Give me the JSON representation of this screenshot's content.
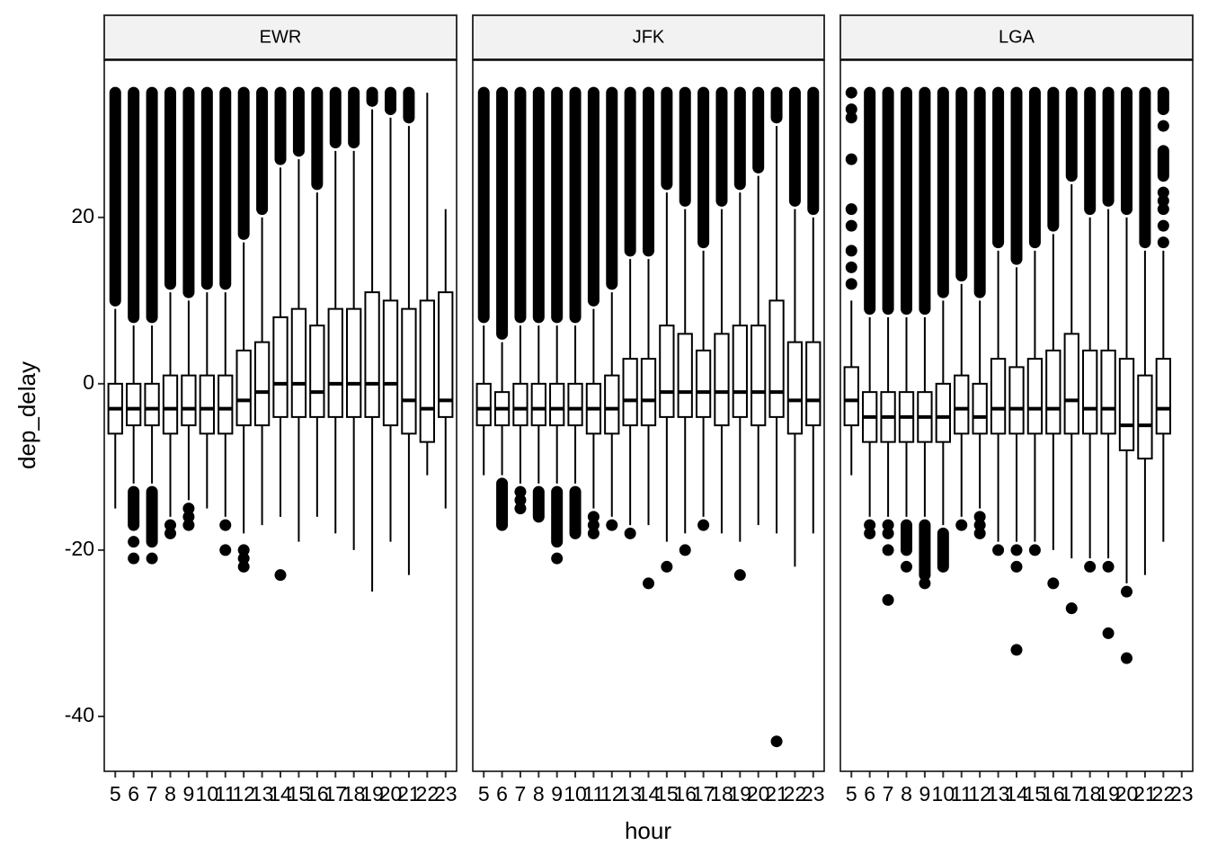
{
  "xlabel": "hour",
  "ylabel": "dep_delay",
  "chart_data": [
    {
      "type": "box",
      "title": "EWR",
      "ylim": [
        -46.6,
        38.9
      ],
      "yticks": [
        -40,
        -20,
        0,
        20
      ],
      "categories": [
        5,
        6,
        7,
        8,
        9,
        10,
        11,
        12,
        13,
        14,
        15,
        16,
        17,
        18,
        19,
        20,
        21,
        22,
        23
      ],
      "boxes": [
        {
          "low": -15,
          "q1": -6,
          "median": -3,
          "q3": 0,
          "high": 9,
          "bands": [
            [
              10,
              35
            ]
          ]
        },
        {
          "low": -12,
          "q1": -5,
          "median": -3,
          "q3": 0,
          "high": 7,
          "bands": [
            [
              8,
              35
            ],
            [
              -17,
              -13
            ]
          ],
          "outliers": [
            -19,
            -21
          ]
        },
        {
          "low": -12,
          "q1": -5,
          "median": -3,
          "q3": 0,
          "high": 7,
          "bands": [
            [
              8,
              35
            ],
            [
              -19,
              -13
            ]
          ],
          "outliers": [
            -21
          ]
        },
        {
          "low": -16,
          "q1": -6,
          "median": -3,
          "q3": 1,
          "high": 11,
          "bands": [
            [
              12,
              35
            ]
          ],
          "outliers": [
            -17,
            -18
          ]
        },
        {
          "low": -14,
          "q1": -5,
          "median": -3,
          "q3": 1,
          "high": 10,
          "bands": [
            [
              11,
              35
            ]
          ],
          "outliers": [
            -15,
            -16,
            -17
          ]
        },
        {
          "low": -15,
          "q1": -6,
          "median": -3,
          "q3": 1,
          "high": 11,
          "bands": [
            [
              12,
              35
            ]
          ]
        },
        {
          "low": -16,
          "q1": -6,
          "median": -3,
          "q3": 1,
          "high": 11,
          "bands": [
            [
              12,
              35
            ]
          ],
          "outliers": [
            -17,
            -20
          ]
        },
        {
          "low": -18,
          "q1": -5,
          "median": -2,
          "q3": 4,
          "high": 17,
          "bands": [
            [
              18,
              35
            ]
          ],
          "outliers": [
            -20,
            -21,
            -22
          ]
        },
        {
          "low": -17,
          "q1": -5,
          "median": -1,
          "q3": 5,
          "high": 20,
          "bands": [
            [
              21,
              35
            ]
          ]
        },
        {
          "low": -16,
          "q1": -4,
          "median": 0,
          "q3": 8,
          "high": 26,
          "bands": [
            [
              27,
              35
            ]
          ],
          "outliers": [
            -23
          ]
        },
        {
          "low": -19,
          "q1": -4,
          "median": 0,
          "q3": 9,
          "high": 27,
          "bands": [
            [
              28,
              35
            ]
          ]
        },
        {
          "low": -16,
          "q1": -4,
          "median": -1,
          "q3": 7,
          "high": 23,
          "bands": [
            [
              24,
              35
            ]
          ]
        },
        {
          "low": -18,
          "q1": -4,
          "median": 0,
          "q3": 9,
          "high": 28,
          "bands": [
            [
              29,
              35
            ]
          ]
        },
        {
          "low": -20,
          "q1": -4,
          "median": 0,
          "q3": 9,
          "high": 28,
          "bands": [
            [
              29,
              35
            ]
          ]
        },
        {
          "low": -25,
          "q1": -4,
          "median": 0,
          "q3": 11,
          "high": 33,
          "bands": [
            [
              34,
              35
            ]
          ]
        },
        {
          "low": -19,
          "q1": -5,
          "median": 0,
          "q3": 10,
          "high": 32,
          "bands": [
            [
              33,
              35
            ]
          ]
        },
        {
          "low": -23,
          "q1": -6,
          "median": -2,
          "q3": 9,
          "high": 31,
          "bands": [
            [
              32,
              35
            ]
          ]
        },
        {
          "low": -11,
          "q1": -7,
          "median": -3,
          "q3": 10,
          "high": 35
        },
        {
          "low": -15,
          "q1": -4,
          "median": -2,
          "q3": 11,
          "high": 21
        }
      ]
    },
    {
      "type": "box",
      "title": "JFK",
      "categories": [
        5,
        6,
        7,
        8,
        9,
        10,
        11,
        12,
        13,
        14,
        15,
        16,
        17,
        18,
        19,
        20,
        21,
        22,
        23
      ],
      "boxes": [
        {
          "low": -11,
          "q1": -5,
          "median": -3,
          "q3": 0,
          "high": 7,
          "bands": [
            [
              8,
              35
            ]
          ]
        },
        {
          "low": -11,
          "q1": -5,
          "median": -3,
          "q3": -1,
          "high": 5,
          "bands": [
            [
              6,
              35
            ],
            [
              -17,
              -12
            ]
          ]
        },
        {
          "low": -12,
          "q1": -5,
          "median": -3,
          "q3": 0,
          "high": 7,
          "bands": [
            [
              8,
              35
            ]
          ],
          "outliers": [
            -13,
            -14,
            -15
          ]
        },
        {
          "low": -12,
          "q1": -5,
          "median": -3,
          "q3": 0,
          "high": 7,
          "bands": [
            [
              8,
              35
            ],
            [
              -16,
              -13
            ]
          ]
        },
        {
          "low": -12,
          "q1": -5,
          "median": -3,
          "q3": 0,
          "high": 7,
          "bands": [
            [
              8,
              35
            ],
            [
              -19,
              -13
            ]
          ],
          "outliers": [
            -21
          ]
        },
        {
          "low": -12,
          "q1": -5,
          "median": -3,
          "q3": 0,
          "high": 7,
          "bands": [
            [
              8,
              35
            ],
            [
              -18,
              -13
            ]
          ]
        },
        {
          "low": -15,
          "q1": -6,
          "median": -3,
          "q3": 0,
          "high": 9,
          "bands": [
            [
              10,
              35
            ]
          ],
          "outliers": [
            -16,
            -17,
            -18
          ]
        },
        {
          "low": -16,
          "q1": -6,
          "median": -3,
          "q3": 1,
          "high": 11,
          "bands": [
            [
              12,
              35
            ]
          ],
          "outliers": [
            -17
          ]
        },
        {
          "low": -17,
          "q1": -5,
          "median": -2,
          "q3": 3,
          "high": 15,
          "bands": [
            [
              16,
              35
            ]
          ],
          "outliers": [
            -18
          ]
        },
        {
          "low": -17,
          "q1": -5,
          "median": -2,
          "q3": 3,
          "high": 15,
          "bands": [
            [
              16,
              35
            ]
          ],
          "outliers": [
            -24
          ]
        },
        {
          "low": -19,
          "q1": -4,
          "median": -1,
          "q3": 7,
          "high": 23,
          "bands": [
            [
              24,
              35
            ]
          ],
          "outliers": [
            -22
          ]
        },
        {
          "low": -18,
          "q1": -4,
          "median": -1,
          "q3": 6,
          "high": 21,
          "bands": [
            [
              22,
              35
            ]
          ],
          "outliers": [
            -20
          ]
        },
        {
          "low": -16,
          "q1": -4,
          "median": -1,
          "q3": 4,
          "high": 16,
          "bands": [
            [
              17,
              35
            ]
          ],
          "outliers": [
            -17
          ]
        },
        {
          "low": -18,
          "q1": -5,
          "median": -1,
          "q3": 6,
          "high": 21,
          "bands": [
            [
              22,
              35
            ]
          ]
        },
        {
          "low": -19,
          "q1": -4,
          "median": -1,
          "q3": 7,
          "high": 23,
          "bands": [
            [
              24,
              35
            ]
          ],
          "outliers": [
            -23
          ]
        },
        {
          "low": -17,
          "q1": -5,
          "median": -1,
          "q3": 7,
          "high": 25,
          "bands": [
            [
              26,
              35
            ]
          ]
        },
        {
          "low": -18,
          "q1": -4,
          "median": -1,
          "q3": 10,
          "high": 31,
          "bands": [
            [
              32,
              35
            ]
          ],
          "outliers": [
            -43
          ]
        },
        {
          "low": -22,
          "q1": -6,
          "median": -2,
          "q3": 5,
          "high": 21,
          "bands": [
            [
              22,
              35
            ]
          ]
        },
        {
          "low": -18,
          "q1": -5,
          "median": -2,
          "q3": 5,
          "high": 20,
          "bands": [
            [
              21,
              35
            ]
          ]
        }
      ]
    },
    {
      "type": "box",
      "title": "LGA",
      "categories": [
        5,
        6,
        7,
        8,
        9,
        10,
        11,
        12,
        13,
        14,
        15,
        16,
        17,
        18,
        19,
        20,
        21,
        22,
        23
      ],
      "boxes": [
        {
          "low": -11,
          "q1": -5,
          "median": -2,
          "q3": 2,
          "high": 10,
          "outliers": [
            12,
            14,
            16,
            19,
            21,
            27,
            32,
            33,
            35
          ]
        },
        {
          "low": -16,
          "q1": -7,
          "median": -4,
          "q3": -1,
          "high": 8,
          "bands": [
            [
              9,
              35
            ]
          ],
          "outliers": [
            -17,
            -18
          ]
        },
        {
          "low": -16,
          "q1": -7,
          "median": -4,
          "q3": -1,
          "high": 8,
          "bands": [
            [
              9,
              35
            ]
          ],
          "outliers": [
            -17,
            -18,
            -20,
            -26
          ]
        },
        {
          "low": -16,
          "q1": -7,
          "median": -4,
          "q3": -1,
          "high": 8,
          "bands": [
            [
              9,
              35
            ],
            [
              -20,
              -17
            ]
          ],
          "outliers": [
            -22
          ]
        },
        {
          "low": -16,
          "q1": -7,
          "median": -4,
          "q3": -1,
          "high": 8,
          "bands": [
            [
              9,
              35
            ],
            [
              -23,
              -17
            ]
          ],
          "outliers": [
            -24
          ]
        },
        {
          "low": -17,
          "q1": -7,
          "median": -4,
          "q3": 0,
          "high": 10,
          "bands": [
            [
              11,
              35
            ],
            [
              -22,
              -18
            ]
          ]
        },
        {
          "low": -16,
          "q1": -6,
          "median": -3,
          "q3": 1,
          "high": 12,
          "bands": [
            [
              13,
              35
            ]
          ],
          "outliers": [
            -17
          ]
        },
        {
          "low": -15,
          "q1": -6,
          "median": -4,
          "q3": 0,
          "high": 10,
          "bands": [
            [
              11,
              35
            ]
          ],
          "outliers": [
            -16,
            -17,
            -18
          ]
        },
        {
          "low": -19,
          "q1": -6,
          "median": -3,
          "q3": 3,
          "high": 16,
          "bands": [
            [
              17,
              35
            ]
          ],
          "outliers": [
            -20
          ]
        },
        {
          "low": -19,
          "q1": -6,
          "median": -3,
          "q3": 2,
          "high": 14,
          "bands": [
            [
              15,
              35
            ]
          ],
          "outliers": [
            -20,
            -22,
            -32
          ]
        },
        {
          "low": -19,
          "q1": -6,
          "median": -3,
          "q3": 3,
          "high": 16,
          "bands": [
            [
              17,
              35
            ]
          ],
          "outliers": [
            -20
          ]
        },
        {
          "low": -20,
          "q1": -6,
          "median": -3,
          "q3": 4,
          "high": 18,
          "bands": [
            [
              19,
              35
            ]
          ],
          "outliers": [
            -24
          ]
        },
        {
          "low": -21,
          "q1": -6,
          "median": -2,
          "q3": 6,
          "high": 24,
          "bands": [
            [
              25,
              35
            ]
          ],
          "outliers": [
            -27
          ]
        },
        {
          "low": -21,
          "q1": -6,
          "median": -3,
          "q3": 4,
          "high": 20,
          "bands": [
            [
              21,
              35
            ]
          ],
          "outliers": [
            -22
          ]
        },
        {
          "low": -21,
          "q1": -6,
          "median": -3,
          "q3": 4,
          "high": 21,
          "bands": [
            [
              22,
              35
            ]
          ],
          "outliers": [
            -22,
            -30
          ]
        },
        {
          "low": -24,
          "q1": -8,
          "median": -5,
          "q3": 3,
          "high": 20,
          "bands": [
            [
              21,
              35
            ]
          ],
          "outliers": [
            -25,
            -33
          ]
        },
        {
          "low": -23,
          "q1": -9,
          "median": -5,
          "q3": 1,
          "high": 16,
          "bands": [
            [
              17,
              35
            ]
          ]
        },
        {
          "low": -19,
          "q1": -6,
          "median": -3,
          "q3": 3,
          "high": 16,
          "bands": [
            [
              25,
              28
            ],
            [
              33,
              35
            ]
          ],
          "outliers": [
            17,
            19,
            21,
            22,
            23,
            31
          ]
        },
        null
      ]
    }
  ]
}
